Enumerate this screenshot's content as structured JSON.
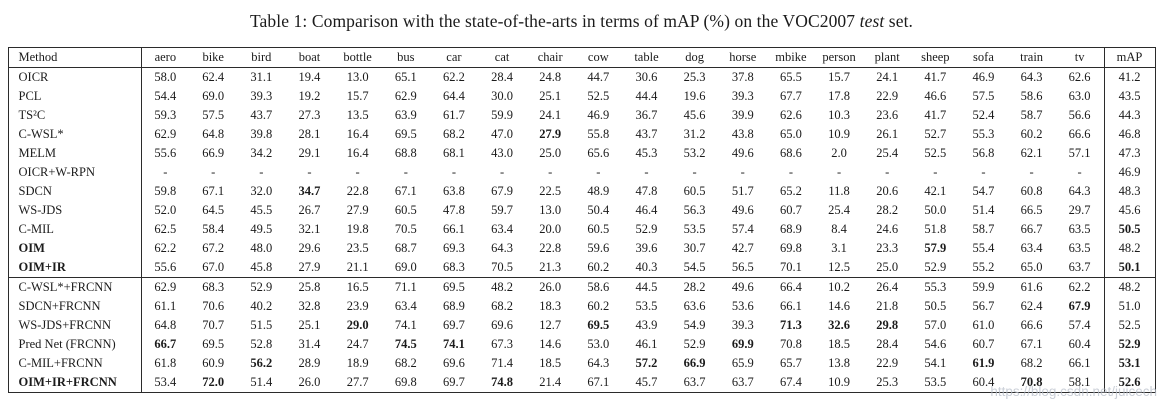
{
  "title": {
    "prefix": "Table 1: Comparison with the state-of-the-arts in terms of mAP (%) on the VOC2007 ",
    "emphasis": "test",
    "suffix": " set."
  },
  "watermark": "https://blog.csdn.net/juicech",
  "table": {
    "columns": [
      "Method",
      "aero",
      "bike",
      "bird",
      "boat",
      "bottle",
      "bus",
      "car",
      "cat",
      "chair",
      "cow",
      "table",
      "dog",
      "horse",
      "mbike",
      "person",
      "plant",
      "sheep",
      "sofa",
      "train",
      "tv",
      "mAP"
    ],
    "rows": [
      {
        "method": "OICR",
        "bold_method": false,
        "separator_before": false,
        "values": [
          "58.0",
          "62.4",
          "31.1",
          "19.4",
          "13.0",
          "65.1",
          "62.2",
          "28.4",
          "24.8",
          "44.7",
          "30.6",
          "25.3",
          "37.8",
          "65.5",
          "15.7",
          "24.1",
          "41.7",
          "46.9",
          "64.3",
          "62.6",
          "41.2"
        ],
        "bold": []
      },
      {
        "method": "PCL",
        "bold_method": false,
        "separator_before": false,
        "values": [
          "54.4",
          "69.0",
          "39.3",
          "19.2",
          "15.7",
          "62.9",
          "64.4",
          "30.0",
          "25.1",
          "52.5",
          "44.4",
          "19.6",
          "39.3",
          "67.7",
          "17.8",
          "22.9",
          "46.6",
          "57.5",
          "58.6",
          "63.0",
          "43.5"
        ],
        "bold": []
      },
      {
        "method": "TS²C",
        "bold_method": false,
        "separator_before": false,
        "values": [
          "59.3",
          "57.5",
          "43.7",
          "27.3",
          "13.5",
          "63.9",
          "61.7",
          "59.9",
          "24.1",
          "46.9",
          "36.7",
          "45.6",
          "39.9",
          "62.6",
          "10.3",
          "23.6",
          "41.7",
          "52.4",
          "58.7",
          "56.6",
          "44.3"
        ],
        "bold": []
      },
      {
        "method": "C-WSL*",
        "bold_method": false,
        "separator_before": false,
        "values": [
          "62.9",
          "64.8",
          "39.8",
          "28.1",
          "16.4",
          "69.5",
          "68.2",
          "47.0",
          "27.9",
          "55.8",
          "43.7",
          "31.2",
          "43.8",
          "65.0",
          "10.9",
          "26.1",
          "52.7",
          "55.3",
          "60.2",
          "66.6",
          "46.8"
        ],
        "bold": [
          8
        ]
      },
      {
        "method": "MELM",
        "bold_method": false,
        "separator_before": false,
        "values": [
          "55.6",
          "66.9",
          "34.2",
          "29.1",
          "16.4",
          "68.8",
          "68.1",
          "43.0",
          "25.0",
          "65.6",
          "45.3",
          "53.2",
          "49.6",
          "68.6",
          "2.0",
          "25.4",
          "52.5",
          "56.8",
          "62.1",
          "57.1",
          "47.3"
        ],
        "bold": []
      },
      {
        "method": "OICR+W-RPN",
        "bold_method": false,
        "separator_before": false,
        "values": [
          "-",
          "-",
          "-",
          "-",
          "-",
          "-",
          "-",
          "-",
          "-",
          "-",
          "-",
          "-",
          "-",
          "-",
          "-",
          "-",
          "-",
          "-",
          "-",
          "-",
          "46.9"
        ],
        "bold": []
      },
      {
        "method": "SDCN",
        "bold_method": false,
        "separator_before": false,
        "values": [
          "59.8",
          "67.1",
          "32.0",
          "34.7",
          "22.8",
          "67.1",
          "63.8",
          "67.9",
          "22.5",
          "48.9",
          "47.8",
          "60.5",
          "51.7",
          "65.2",
          "11.8",
          "20.6",
          "42.1",
          "54.7",
          "60.8",
          "64.3",
          "48.3"
        ],
        "bold": [
          3
        ]
      },
      {
        "method": "WS-JDS",
        "bold_method": false,
        "separator_before": false,
        "values": [
          "52.0",
          "64.5",
          "45.5",
          "26.7",
          "27.9",
          "60.5",
          "47.8",
          "59.7",
          "13.0",
          "50.4",
          "46.4",
          "56.3",
          "49.6",
          "60.7",
          "25.4",
          "28.2",
          "50.0",
          "51.4",
          "66.5",
          "29.7",
          "45.6"
        ],
        "bold": []
      },
      {
        "method": "C-MIL",
        "bold_method": false,
        "separator_before": false,
        "values": [
          "62.5",
          "58.4",
          "49.5",
          "32.1",
          "19.8",
          "70.5",
          "66.1",
          "63.4",
          "20.0",
          "60.5",
          "52.9",
          "53.5",
          "57.4",
          "68.9",
          "8.4",
          "24.6",
          "51.8",
          "58.7",
          "66.7",
          "63.5",
          "50.5"
        ],
        "bold": [
          20
        ]
      },
      {
        "method": "OIM",
        "bold_method": true,
        "separator_before": false,
        "values": [
          "62.2",
          "67.2",
          "48.0",
          "29.6",
          "23.5",
          "68.7",
          "69.3",
          "64.3",
          "22.8",
          "59.6",
          "39.6",
          "30.7",
          "42.7",
          "69.8",
          "3.1",
          "23.3",
          "57.9",
          "55.4",
          "63.4",
          "63.5",
          "48.2"
        ],
        "bold": [
          16
        ]
      },
      {
        "method": "OIM+IR",
        "bold_method": true,
        "separator_before": false,
        "values": [
          "55.6",
          "67.0",
          "45.8",
          "27.9",
          "21.1",
          "69.0",
          "68.3",
          "70.5",
          "21.3",
          "60.2",
          "40.3",
          "54.5",
          "56.5",
          "70.1",
          "12.5",
          "25.0",
          "52.9",
          "55.2",
          "65.0",
          "63.7",
          "50.1"
        ],
        "bold": [
          20
        ]
      },
      {
        "method": "C-WSL*+FRCNN",
        "bold_method": false,
        "separator_before": true,
        "values": [
          "62.9",
          "68.3",
          "52.9",
          "25.8",
          "16.5",
          "71.1",
          "69.5",
          "48.2",
          "26.0",
          "58.6",
          "44.5",
          "28.2",
          "49.6",
          "66.4",
          "10.2",
          "26.4",
          "55.3",
          "59.9",
          "61.6",
          "62.2",
          "48.2"
        ],
        "bold": []
      },
      {
        "method": "SDCN+FRCNN",
        "bold_method": false,
        "separator_before": false,
        "values": [
          "61.1",
          "70.6",
          "40.2",
          "32.8",
          "23.9",
          "63.4",
          "68.9",
          "68.2",
          "18.3",
          "60.2",
          "53.5",
          "63.6",
          "53.6",
          "66.1",
          "14.6",
          "21.8",
          "50.5",
          "56.7",
          "62.4",
          "67.9",
          "51.0"
        ],
        "bold": [
          19
        ]
      },
      {
        "method": "WS-JDS+FRCNN",
        "bold_method": false,
        "separator_before": false,
        "values": [
          "64.8",
          "70.7",
          "51.5",
          "25.1",
          "29.0",
          "74.1",
          "69.7",
          "69.6",
          "12.7",
          "69.5",
          "43.9",
          "54.9",
          "39.3",
          "71.3",
          "32.6",
          "29.8",
          "57.0",
          "61.0",
          "66.6",
          "57.4",
          "52.5"
        ],
        "bold": [
          4,
          9,
          13,
          14,
          15
        ]
      },
      {
        "method": "Pred Net (FRCNN)",
        "bold_method": false,
        "separator_before": false,
        "values": [
          "66.7",
          "69.5",
          "52.8",
          "31.4",
          "24.7",
          "74.5",
          "74.1",
          "67.3",
          "14.6",
          "53.0",
          "46.1",
          "52.9",
          "69.9",
          "70.8",
          "18.5",
          "28.4",
          "54.6",
          "60.7",
          "67.1",
          "60.4",
          "52.9"
        ],
        "bold": [
          0,
          5,
          6,
          12,
          20
        ]
      },
      {
        "method": "C-MIL+FRCNN",
        "bold_method": false,
        "separator_before": false,
        "values": [
          "61.8",
          "60.9",
          "56.2",
          "28.9",
          "18.9",
          "68.2",
          "69.6",
          "71.4",
          "18.5",
          "64.3",
          "57.2",
          "66.9",
          "65.9",
          "65.7",
          "13.8",
          "22.9",
          "54.1",
          "61.9",
          "68.2",
          "66.1",
          "53.1"
        ],
        "bold": [
          2,
          10,
          11,
          17,
          20
        ]
      },
      {
        "method": "OIM+IR+FRCNN",
        "bold_method": true,
        "separator_before": false,
        "values": [
          "53.4",
          "72.0",
          "51.4",
          "26.0",
          "27.7",
          "69.8",
          "69.7",
          "74.8",
          "21.4",
          "67.1",
          "45.7",
          "63.7",
          "63.7",
          "67.4",
          "10.9",
          "25.3",
          "53.5",
          "60.4",
          "70.8",
          "58.1",
          "52.6"
        ],
        "bold": [
          1,
          7,
          18,
          20
        ]
      }
    ]
  }
}
